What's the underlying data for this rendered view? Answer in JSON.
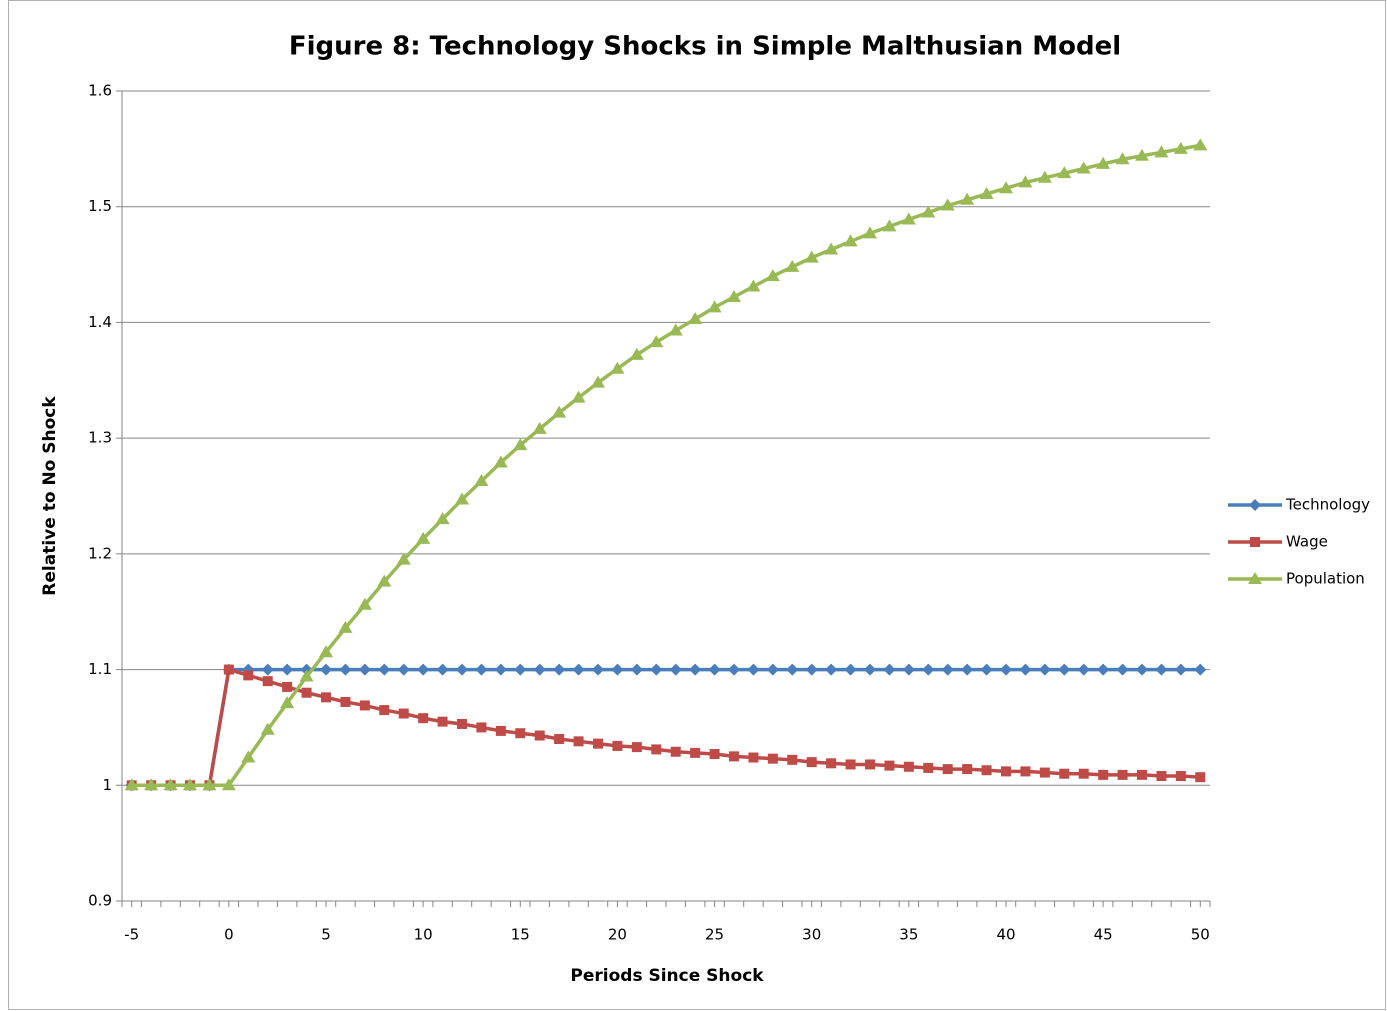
{
  "chart_data": {
    "type": "line",
    "title": "Figure 8:  Technology Shocks in Simple Malthusian Model",
    "x_label": "Periods Since Shock",
    "y_label": "Relative to No Shock",
    "x": [
      -5,
      -4,
      -3,
      -2,
      -1,
      0,
      1,
      2,
      3,
      4,
      5,
      6,
      7,
      8,
      9,
      10,
      11,
      12,
      13,
      14,
      15,
      16,
      17,
      18,
      19,
      20,
      21,
      22,
      23,
      24,
      25,
      26,
      27,
      28,
      29,
      30,
      31,
      32,
      33,
      34,
      35,
      36,
      37,
      38,
      39,
      40,
      41,
      42,
      43,
      44,
      45,
      46,
      47,
      48,
      49,
      50
    ],
    "xlim": [
      -5.5,
      50.5
    ],
    "xticks": [
      -5,
      0,
      5,
      10,
      15,
      20,
      25,
      30,
      35,
      40,
      45,
      50
    ],
    "ylim": [
      0.9,
      1.6
    ],
    "yticks": [
      0.9,
      1,
      1.1,
      1.2,
      1.3,
      1.4,
      1.5,
      1.6
    ],
    "grid": true,
    "legend": "right",
    "series": [
      {
        "name": "Technology",
        "color": "#4a7ebb",
        "marker": "diamond",
        "values": [
          1,
          1,
          1,
          1,
          1,
          1.1,
          1.1,
          1.1,
          1.1,
          1.1,
          1.1,
          1.1,
          1.1,
          1.1,
          1.1,
          1.1,
          1.1,
          1.1,
          1.1,
          1.1,
          1.1,
          1.1,
          1.1,
          1.1,
          1.1,
          1.1,
          1.1,
          1.1,
          1.1,
          1.1,
          1.1,
          1.1,
          1.1,
          1.1,
          1.1,
          1.1,
          1.1,
          1.1,
          1.1,
          1.1,
          1.1,
          1.1,
          1.1,
          1.1,
          1.1,
          1.1,
          1.1,
          1.1,
          1.1,
          1.1,
          1.1,
          1.1,
          1.1,
          1.1,
          1.1,
          1.1
        ]
      },
      {
        "name": "Wage",
        "color": "#be4b48",
        "marker": "square",
        "values": [
          1,
          1,
          1,
          1,
          1,
          1.1,
          1.095,
          1.09,
          1.085,
          1.08,
          1.076,
          1.072,
          1.069,
          1.065,
          1.062,
          1.058,
          1.055,
          1.053,
          1.05,
          1.047,
          1.045,
          1.043,
          1.04,
          1.038,
          1.036,
          1.034,
          1.033,
          1.031,
          1.029,
          1.028,
          1.027,
          1.025,
          1.024,
          1.023,
          1.022,
          1.02,
          1.019,
          1.018,
          1.018,
          1.017,
          1.016,
          1.015,
          1.014,
          1.014,
          1.013,
          1.012,
          1.012,
          1.011,
          1.01,
          1.01,
          1.009,
          1.009,
          1.009,
          1.008,
          1.008,
          1.007
        ]
      },
      {
        "name": "Population",
        "color": "#98b954",
        "marker": "triangle",
        "values": [
          1,
          1,
          1,
          1,
          1,
          1,
          1.024,
          1.048,
          1.071,
          1.094,
          1.115,
          1.136,
          1.156,
          1.176,
          1.195,
          1.213,
          1.23,
          1.247,
          1.263,
          1.279,
          1.294,
          1.308,
          1.322,
          1.335,
          1.348,
          1.36,
          1.372,
          1.383,
          1.393,
          1.403,
          1.413,
          1.422,
          1.431,
          1.44,
          1.448,
          1.456,
          1.463,
          1.47,
          1.477,
          1.483,
          1.489,
          1.495,
          1.501,
          1.506,
          1.511,
          1.516,
          1.521,
          1.525,
          1.529,
          1.533,
          1.537,
          1.541,
          1.544,
          1.547,
          1.55,
          1.553
        ]
      }
    ]
  }
}
